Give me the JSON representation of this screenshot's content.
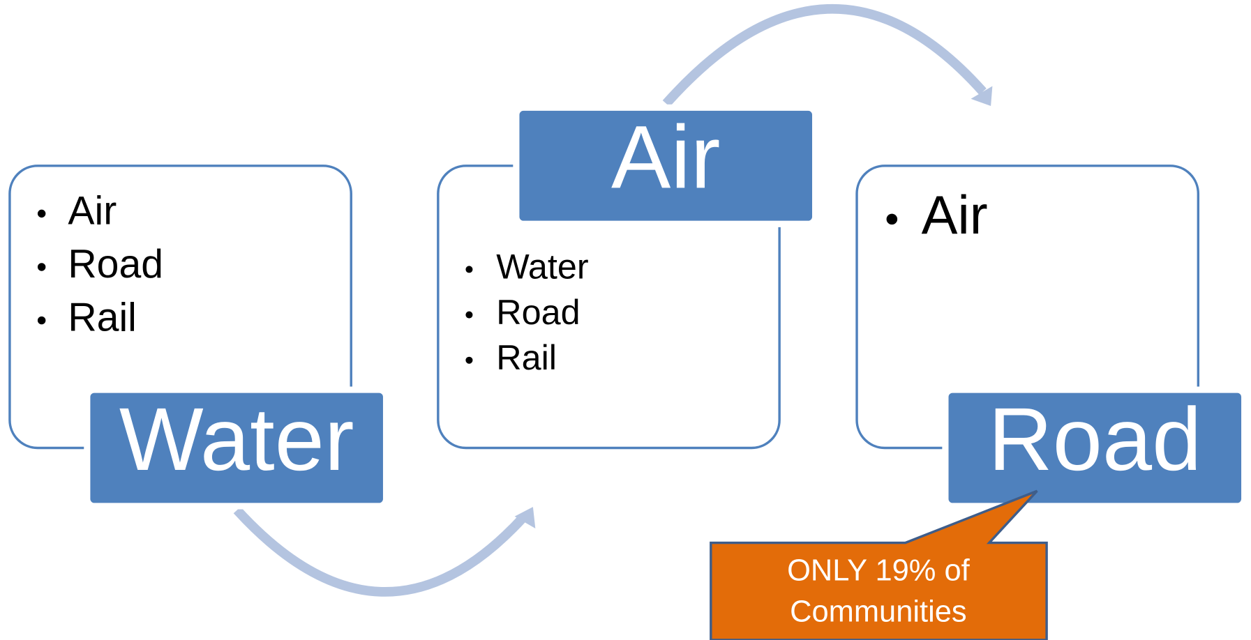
{
  "panels": [
    {
      "title": "Water",
      "items": [
        "Air",
        "Road",
        "Rail"
      ]
    },
    {
      "title": "Air",
      "items": [
        "Water",
        "Road",
        "Rail"
      ]
    },
    {
      "title": "Road",
      "items": [
        "Air"
      ]
    }
  ],
  "callout": {
    "lines": [
      "ONLY 19% of",
      "Communities"
    ]
  }
}
